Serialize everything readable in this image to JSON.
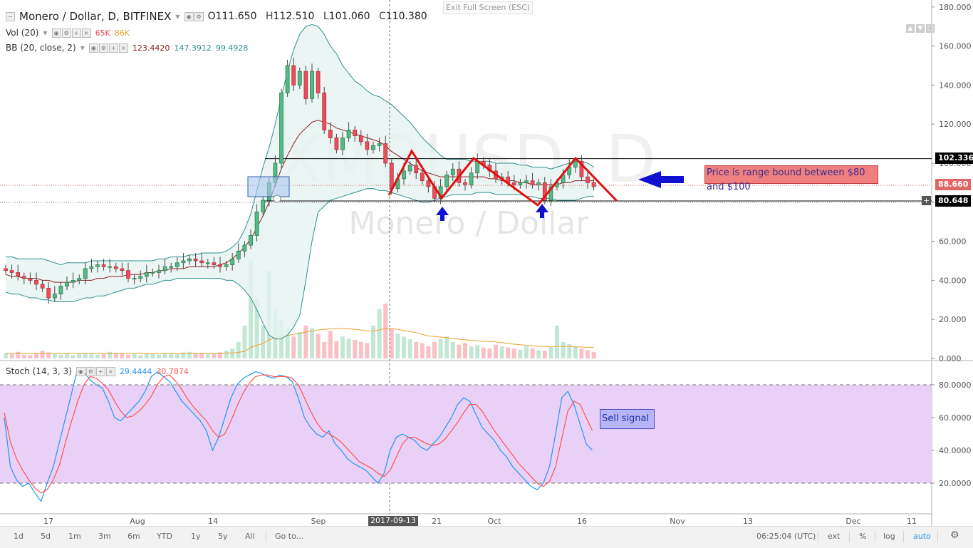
{
  "header": {
    "title": "Monero / Dollar, D, BITFINEX",
    "ohlc": {
      "o_label": "O",
      "o": "111.650",
      "h_label": "H",
      "h": "112.510",
      "l_label": "L",
      "l": "101.060",
      "c_label": "C",
      "c": "110.380"
    },
    "vol": {
      "label": "Vol (20)",
      "v1": "65K",
      "v2": "86K"
    },
    "bb": {
      "label": "BB (20, close, 2)",
      "v1": "123.4420",
      "v2": "147.3912",
      "v3": "99.4928"
    },
    "exit_fullscreen": "Exit Full Screen (ESC)"
  },
  "stoch": {
    "label": "Stoch (14, 3, 3)",
    "k": "29.4444",
    "d": "30.7874"
  },
  "watermark": {
    "symbol": "XMRUSD, D",
    "name": "Monero / Dollar"
  },
  "price_tags": [
    {
      "text": "102.336",
      "color": "#000000"
    },
    {
      "text": "88.660",
      "color": "#e06666"
    },
    {
      "text": "80.648",
      "color": "#000000"
    }
  ],
  "annotations": {
    "range_text": "Price is range bound between $80 and $100",
    "sell_signal": "Sell signal"
  },
  "time_axis": {
    "labels": [
      "17",
      "Aug",
      "14",
      "Sep",
      "21",
      "Oct",
      "16",
      "Nov",
      "13",
      "Dec",
      "11"
    ],
    "cursor_date": "2017-09-13"
  },
  "bottom_bar": {
    "ranges": [
      "1d",
      "5d",
      "1m",
      "3m",
      "6m",
      "YTD",
      "1y",
      "5y",
      "All"
    ],
    "goto": "Go to...",
    "time": "06:25:04 (UTC)",
    "toggles": [
      "ext",
      "%",
      "log",
      "auto"
    ]
  },
  "colors": {
    "up": "#53b987",
    "down": "#eb4d5c",
    "band_fill": "#e6f4f1",
    "band_line": "#2f8f8f",
    "basis": "#8b1f1f",
    "stoch_k": "#2196f3",
    "stoch_d": "#ff5252",
    "stoch_zone": "#e9d0f7",
    "pattern": "#e01010",
    "arrow": "#1010d0"
  },
  "chart_data": [
    {
      "type": "candlestick",
      "title": "Monero / Dollar, D, BITFINEX",
      "ylim": [
        0,
        180
      ],
      "y_ticks": [
        "180.000",
        "160.000",
        "140.000",
        "120.000",
        "100.000",
        "80.000",
        "60.000",
        "40.000",
        "20.000",
        "0.000"
      ],
      "resistance": 102.336,
      "support": 80.648,
      "last_price": 88.66,
      "close": [
        45,
        44,
        42,
        41,
        40,
        38,
        36,
        31,
        33,
        37,
        39,
        40,
        41,
        46,
        47,
        48,
        47,
        47,
        46,
        45,
        41,
        41,
        42,
        44,
        44,
        45,
        47,
        47,
        49,
        50,
        51,
        50,
        49,
        49,
        48,
        47,
        48,
        51,
        55,
        58,
        63,
        75,
        81,
        90,
        100,
        136,
        150,
        140,
        147,
        133,
        147,
        136,
        117,
        113,
        107,
        113,
        117,
        114,
        111,
        107,
        109,
        110,
        100,
        87,
        92,
        96,
        99,
        95,
        91,
        88,
        82,
        88,
        94,
        97,
        90,
        89,
        95,
        101,
        99,
        96,
        92,
        93,
        90,
        89,
        90,
        91,
        89,
        90,
        81,
        88,
        90,
        94,
        98,
        101,
        93,
        90,
        88
      ],
      "volume_k": [
        10,
        8,
        12,
        7,
        6,
        9,
        14,
        11,
        8,
        7,
        9,
        6,
        8,
        10,
        9,
        7,
        8,
        12,
        10,
        9,
        7,
        8,
        6,
        9,
        8,
        7,
        10,
        9,
        8,
        11,
        12,
        9,
        10,
        8,
        9,
        11,
        14,
        18,
        30,
        60,
        180,
        110,
        60,
        160,
        90,
        70,
        55,
        40,
        48,
        60,
        55,
        45,
        30,
        50,
        32,
        40,
        36,
        34,
        30,
        28,
        60,
        90,
        100,
        55,
        45,
        40,
        35,
        30,
        28,
        22,
        30,
        35,
        40,
        30,
        25,
        28,
        22,
        24,
        20,
        18,
        25,
        22,
        20,
        18,
        16,
        22,
        18,
        15,
        14,
        20,
        60,
        30,
        26,
        22,
        18,
        15,
        12
      ],
      "bb_upper": [
        52,
        52,
        51,
        51,
        51,
        51,
        51,
        50,
        49,
        48,
        49,
        49,
        49,
        49,
        50,
        50,
        50,
        50,
        50,
        50,
        50,
        50,
        50,
        50,
        50,
        51,
        51,
        52,
        52,
        52,
        53,
        53,
        54,
        54,
        54,
        54,
        55,
        57,
        60,
        66,
        74,
        86,
        98,
        108,
        120,
        134,
        147,
        158,
        166,
        170,
        171,
        170,
        166,
        160,
        156,
        150,
        146,
        142,
        140,
        137,
        135,
        134,
        132,
        130,
        127,
        124,
        121,
        117,
        113,
        110,
        107,
        104,
        102,
        102,
        102,
        102,
        101,
        101,
        101,
        101,
        100,
        100,
        100,
        100,
        99,
        99,
        98,
        98,
        98,
        97,
        98,
        99,
        100,
        101,
        101,
        100,
        98
      ],
      "bb_basis": [
        43,
        42,
        42,
        41,
        41,
        41,
        40,
        40,
        39,
        39,
        39,
        39,
        40,
        40,
        40,
        41,
        41,
        42,
        42,
        42,
        43,
        43,
        43,
        44,
        44,
        45,
        45,
        46,
        46,
        46,
        47,
        47,
        47,
        47,
        47,
        48,
        49,
        51,
        54,
        57,
        61,
        67,
        73,
        80,
        89,
        97,
        104,
        110,
        115,
        118,
        121,
        122,
        121,
        120,
        118,
        117,
        116,
        115,
        114,
        113,
        112,
        111,
        109,
        106,
        104,
        102,
        100,
        98,
        96,
        95,
        94,
        93,
        93,
        93,
        93,
        93,
        93,
        93,
        93,
        92,
        92,
        91,
        91,
        91,
        90,
        90,
        89,
        89,
        89,
        89,
        89,
        90,
        90,
        91,
        91,
        91,
        91
      ],
      "bb_lower": [
        34,
        33,
        33,
        32,
        31,
        31,
        30,
        30,
        29,
        29,
        29,
        29,
        30,
        31,
        31,
        32,
        32,
        33,
        34,
        35,
        36,
        36,
        37,
        38,
        38,
        39,
        40,
        40,
        41,
        41,
        41,
        41,
        41,
        41,
        41,
        41,
        40,
        40,
        38,
        35,
        31,
        25,
        18,
        12,
        10,
        10,
        12,
        16,
        22,
        40,
        60,
        75,
        78,
        81,
        82,
        83,
        84,
        85,
        86,
        87,
        87,
        86,
        86,
        85,
        84,
        83,
        82,
        81,
        80,
        80,
        81,
        82,
        83,
        84,
        84,
        84,
        84,
        85,
        85,
        85,
        84,
        84,
        84,
        84,
        84,
        83,
        83,
        82,
        82,
        82,
        81,
        81,
        81,
        81,
        82,
        83,
        83
      ],
      "vol_ma_k": [
        9,
        9,
        9,
        9,
        9,
        9,
        9,
        9,
        9,
        9,
        9,
        9,
        9,
        9,
        9,
        9,
        9,
        9,
        9,
        9,
        9,
        9,
        9,
        9,
        9,
        9,
        9,
        9,
        9,
        9,
        9,
        9,
        9,
        9,
        9,
        9,
        10,
        10,
        11,
        13,
        20,
        24,
        27,
        34,
        38,
        40,
        42,
        44,
        46,
        48,
        50,
        52,
        53,
        54,
        54,
        55,
        54,
        53,
        52,
        50,
        50,
        52,
        55,
        54,
        53,
        51,
        49,
        47,
        44,
        41,
        40,
        39,
        38,
        36,
        35,
        34,
        33,
        32,
        31,
        31,
        30,
        29,
        27,
        26,
        25,
        24,
        23,
        22,
        22,
        21,
        22,
        22,
        22,
        21,
        21,
        20,
        20
      ]
    },
    {
      "type": "line",
      "title": "Stoch (14, 3, 3)",
      "ylim": [
        0,
        100
      ],
      "y_ticks": [
        "80.0000",
        "60.0000",
        "40.0000",
        "20.0000"
      ],
      "band": [
        20,
        80
      ],
      "series": [
        {
          "name": "%K",
          "values": [
            60,
            30,
            22,
            18,
            20,
            14,
            9,
            20,
            30,
            45,
            60,
            75,
            90,
            88,
            83,
            80,
            78,
            70,
            60,
            58,
            62,
            66,
            70,
            76,
            85,
            88,
            85,
            82,
            76,
            70,
            66,
            62,
            58,
            52,
            40,
            48,
            60,
            72,
            80,
            84,
            86,
            88,
            87,
            85,
            84,
            86,
            85,
            82,
            72,
            60,
            54,
            50,
            48,
            52,
            44,
            40,
            35,
            32,
            30,
            28,
            24,
            20,
            26,
            40,
            48,
            50,
            48,
            46,
            42,
            40,
            44,
            48,
            54,
            60,
            68,
            72,
            70,
            62,
            54,
            50,
            46,
            40,
            36,
            30,
            26,
            22,
            18,
            16,
            20,
            30,
            50,
            72,
            76,
            68,
            56,
            44,
            40
          ]
        },
        {
          "name": "%D",
          "values": [
            63,
            45,
            35,
            28,
            22,
            17,
            14,
            16,
            22,
            31,
            45,
            58,
            70,
            80,
            85,
            84,
            81,
            77,
            70,
            64,
            60,
            61,
            64,
            68,
            73,
            80,
            85,
            86,
            82,
            77,
            71,
            66,
            62,
            58,
            52,
            48,
            50,
            58,
            67,
            75,
            81,
            85,
            86,
            86,
            85,
            85,
            85,
            84,
            80,
            72,
            64,
            57,
            52,
            50,
            48,
            45,
            41,
            37,
            33,
            31,
            29,
            26,
            24,
            28,
            36,
            44,
            48,
            48,
            46,
            44,
            43,
            44,
            47,
            52,
            57,
            63,
            68,
            68,
            64,
            58,
            52,
            47,
            42,
            37,
            32,
            28,
            24,
            20,
            18,
            21,
            30,
            47,
            64,
            70,
            68,
            60,
            52
          ]
        }
      ]
    }
  ]
}
